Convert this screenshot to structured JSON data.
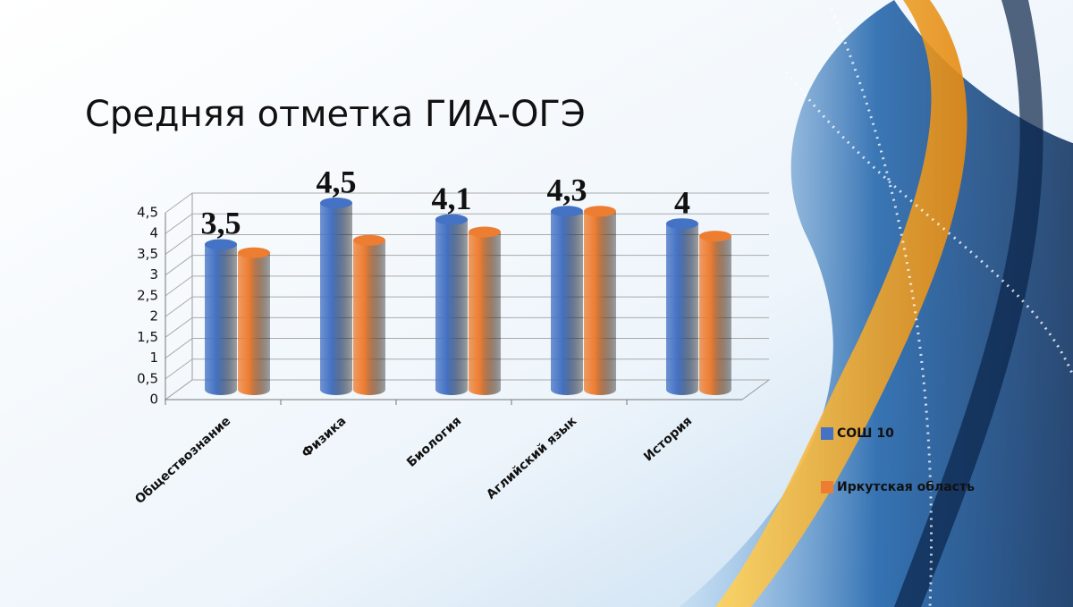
{
  "chart_data": {
    "type": "bar3d",
    "title": "Средняя отметка ГИА-ОГЭ",
    "categories": [
      "Обществознание",
      "Физика",
      "Биология",
      "Аглийский язык",
      "История"
    ],
    "series": [
      {
        "name": "СОШ 10",
        "color": "#4472c4",
        "values": [
          3.5,
          4.5,
          4.1,
          4.3,
          4
        ],
        "value_labels": [
          "3,5",
          "4,5",
          "4,1",
          "4,3",
          "4"
        ]
      },
      {
        "name": "Иркутская область",
        "color": "#ed7d31",
        "values": [
          3.3,
          3.6,
          3.8,
          4.3,
          3.7
        ]
      }
    ],
    "ylim": [
      0,
      4.5
    ],
    "yticks": [
      0,
      {
        "value": 0.5,
        "label": "0,5"
      },
      1,
      {
        "value": 1.5,
        "label": "1,5"
      },
      2,
      {
        "value": 2.5,
        "label": "2,5"
      },
      3,
      {
        "value": 3.5,
        "label": "3,5"
      },
      4,
      {
        "value": 4.5,
        "label": "4,5"
      }
    ],
    "grid": true,
    "legend": "right"
  }
}
